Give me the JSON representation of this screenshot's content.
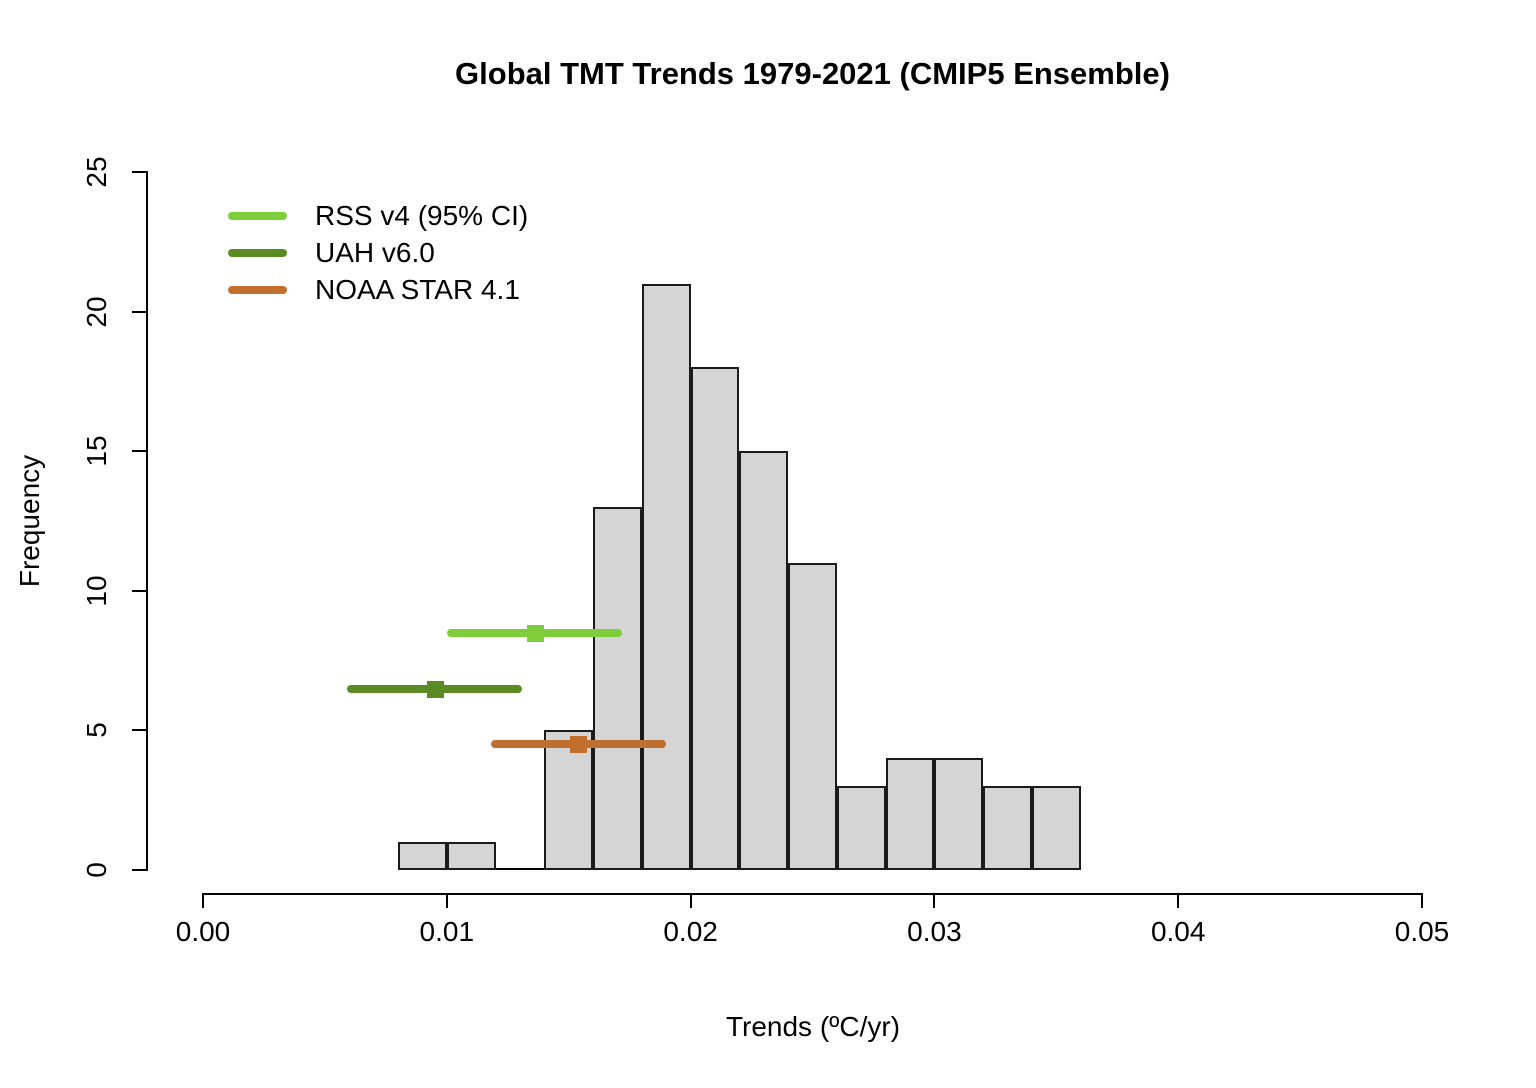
{
  "chart_data": {
    "type": "bar",
    "title": "Global TMT Trends 1979-2021 (CMIP5 Ensemble)",
    "xlabel": "Trends (ºC/yr)",
    "ylabel": "Frequency",
    "xlim": [
      0.0,
      0.05
    ],
    "ylim": [
      0,
      25
    ],
    "x_ticks": [
      0.0,
      0.01,
      0.02,
      0.03,
      0.04,
      0.05
    ],
    "x_tick_labels": [
      "0.00",
      "0.01",
      "0.02",
      "0.03",
      "0.04",
      "0.05"
    ],
    "y_ticks": [
      0,
      5,
      10,
      15,
      20,
      25
    ],
    "y_tick_labels": [
      "0",
      "5",
      "10",
      "15",
      "20",
      "25"
    ],
    "grid": false,
    "legend_position": "top-left",
    "histogram": {
      "bin_width": 0.002,
      "bin_edges": [
        0.008,
        0.01,
        0.012,
        0.014,
        0.016,
        0.018,
        0.02,
        0.022,
        0.024,
        0.026,
        0.028,
        0.03,
        0.032,
        0.034,
        0.036
      ],
      "counts": [
        1,
        1,
        0,
        5,
        13,
        21,
        18,
        15,
        11,
        3,
        4,
        4,
        3,
        3
      ],
      "fill": "#d5d5d5",
      "border": "#1b1b1b"
    },
    "series": [
      {
        "name": "RSS v4 (95% CI)",
        "color": "#7fcd3a",
        "center": 0.0136,
        "ci_low": 0.01,
        "ci_high": 0.0172,
        "y": 8.5
      },
      {
        "name": "UAH v6.0",
        "color": "#5b8c23",
        "center": 0.0095,
        "ci_low": 0.0059,
        "ci_high": 0.0131,
        "y": 6.5
      },
      {
        "name": "NOAA STAR 4.1",
        "color": "#c26e2d",
        "center": 0.0154,
        "ci_low": 0.0118,
        "ci_high": 0.019,
        "y": 4.5
      }
    ]
  }
}
